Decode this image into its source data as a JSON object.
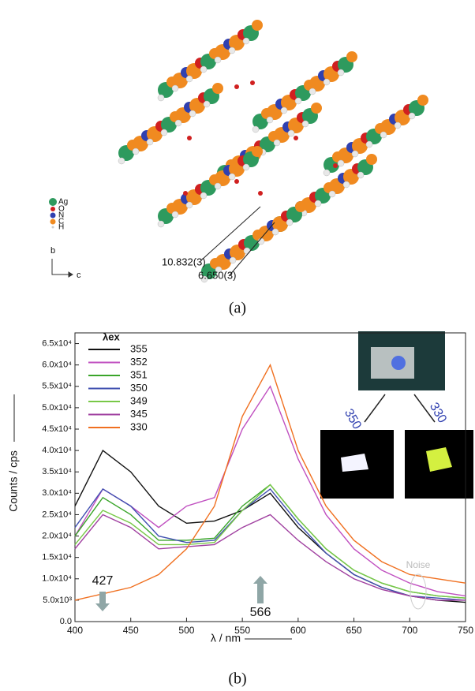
{
  "figure_a": {
    "legend": [
      "Ag",
      "O",
      "N",
      "C",
      "H"
    ],
    "axis_b": "b",
    "axis_c": "c",
    "distance_1": "10.832(3)",
    "distance_2": "6.650(3)",
    "caption": "(a)"
  },
  "caption_b": "(b)",
  "inset": {
    "label_left": "350",
    "label_right": "330"
  },
  "chart_data": {
    "type": "line",
    "x_label": "λ / nm",
    "y_label": "Counts / cps",
    "legend_title": "λex",
    "annotations": [
      "427",
      "566",
      "Noise"
    ],
    "x": [
      400,
      425,
      450,
      475,
      500,
      525,
      550,
      575,
      600,
      625,
      650,
      675,
      700,
      725,
      750
    ],
    "series": [
      {
        "name": "355",
        "color": "#111111",
        "values": [
          27000,
          40000,
          35000,
          27000,
          23000,
          23500,
          26000,
          30000,
          22000,
          16000,
          11000,
          8000,
          6000,
          5000,
          4500
        ]
      },
      {
        "name": "352",
        "color": "#c050c0",
        "values": [
          20000,
          31000,
          27000,
          22000,
          27000,
          29000,
          45000,
          55000,
          38000,
          25000,
          17000,
          12000,
          9000,
          7000,
          6000
        ]
      },
      {
        "name": "351",
        "color": "#3aa52a",
        "values": [
          20000,
          29000,
          25000,
          19000,
          19000,
          19500,
          27000,
          32000,
          24000,
          17000,
          12000,
          9000,
          7000,
          6000,
          5500
        ]
      },
      {
        "name": "350",
        "color": "#4050b0",
        "values": [
          22000,
          31000,
          27000,
          20000,
          18500,
          19000,
          26000,
          31000,
          23000,
          16000,
          11000,
          8000,
          6000,
          5500,
          5000
        ]
      },
      {
        "name": "349",
        "color": "#78c848",
        "values": [
          18000,
          26000,
          23000,
          18000,
          18000,
          18500,
          26000,
          32000,
          24000,
          17000,
          12000,
          9000,
          7000,
          6000,
          5500
        ]
      },
      {
        "name": "345",
        "color": "#a040a0",
        "values": [
          17000,
          25000,
          22000,
          17000,
          17500,
          18000,
          22000,
          25000,
          19000,
          14000,
          10000,
          7500,
          6000,
          5000,
          5000
        ]
      },
      {
        "name": "330",
        "color": "#f07020",
        "values": [
          5000,
          6500,
          8000,
          11000,
          17000,
          27000,
          48000,
          60000,
          40000,
          27000,
          19000,
          14000,
          11000,
          10000,
          9000
        ]
      }
    ],
    "xlim": [
      400,
      750
    ],
    "xticks": [
      400,
      450,
      500,
      550,
      600,
      650,
      700,
      750
    ],
    "ylim": [
      0,
      67500
    ],
    "yticks": [
      {
        "value": 0,
        "label": "0.0"
      },
      {
        "value": 5000,
        "label": "5.0x10³"
      },
      {
        "value": 10000,
        "label": "1.0x10⁴"
      },
      {
        "value": 15000,
        "label": "1.5x10⁴"
      },
      {
        "value": 20000,
        "label": "2.0x10⁴"
      },
      {
        "value": 25000,
        "label": "2.5x10⁴"
      },
      {
        "value": 30000,
        "label": "3.0x10⁴"
      },
      {
        "value": 35000,
        "label": "3.5x10⁴"
      },
      {
        "value": 40000,
        "label": "4.0x10⁴"
      },
      {
        "value": 45000,
        "label": "4.5x10⁴"
      },
      {
        "value": 50000,
        "label": "5.0x10⁴"
      },
      {
        "value": 55000,
        "label": "5.5x10⁴"
      },
      {
        "value": 60000,
        "label": "6.0x10⁴"
      },
      {
        "value": 65000,
        "label": "6.5x10⁴"
      }
    ]
  }
}
